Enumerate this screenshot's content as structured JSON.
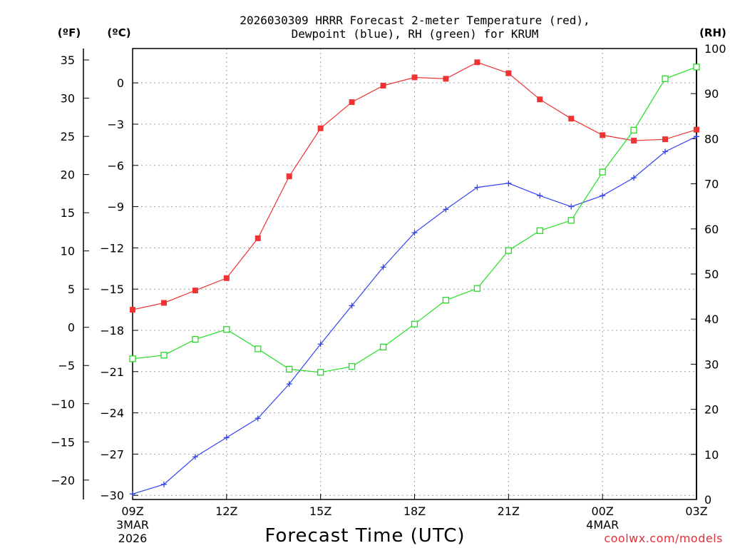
{
  "chart_data": {
    "type": "line",
    "title_line1": "2026030309 HRRR Forecast 2-meter Temperature (red),",
    "title_line2": "Dewpoint (blue), RH (green) for KRUM",
    "xlabel": "Forecast Time (UTC)",
    "credit": "coolwx.com/models",
    "unit_labels": {
      "fahrenheit": "(ºF)",
      "celsius": "(ºC)",
      "rh": "(RH)"
    },
    "x_ticks": [
      {
        "hour": 0,
        "label": "09Z",
        "sub1": "3MAR",
        "sub2": "2026"
      },
      {
        "hour": 3,
        "label": "12Z",
        "sub1": "",
        "sub2": ""
      },
      {
        "hour": 6,
        "label": "15Z",
        "sub1": "",
        "sub2": ""
      },
      {
        "hour": 9,
        "label": "18Z",
        "sub1": "",
        "sub2": ""
      },
      {
        "hour": 12,
        "label": "21Z",
        "sub1": "",
        "sub2": ""
      },
      {
        "hour": 15,
        "label": "00Z",
        "sub1": "4MAR",
        "sub2": ""
      },
      {
        "hour": 18,
        "label": "03Z",
        "sub1": "",
        "sub2": ""
      }
    ],
    "x_range": [
      0,
      18
    ],
    "celsius_range": [
      -30.3,
      2.5
    ],
    "celsius_ticks": [
      -30,
      -27,
      -24,
      -21,
      -18,
      -15,
      -12,
      -9,
      -6,
      -3,
      0
    ],
    "celsius_tick_labels": [
      "−30",
      "−27",
      "−24",
      "−21",
      "−18",
      "−15",
      "−12",
      "−9",
      "−6",
      "−3",
      "0"
    ],
    "fahrenheit_ticks": [
      -20,
      -15,
      -10,
      -5,
      0,
      5,
      10,
      15,
      20,
      25,
      30,
      35
    ],
    "fahrenheit_tick_labels": [
      "−20",
      "−15",
      "−10",
      "−5",
      "0",
      "5",
      "10",
      "15",
      "20",
      "25",
      "30",
      "35"
    ],
    "rh_range": [
      0,
      100
    ],
    "rh_ticks": [
      0,
      10,
      20,
      30,
      40,
      50,
      60,
      70,
      80,
      90,
      100
    ],
    "rh_tick_labels": [
      "0",
      "10",
      "20",
      "30",
      "40",
      "50",
      "60",
      "70",
      "80",
      "90",
      "100"
    ],
    "series": [
      {
        "name": "Temperature",
        "axis": "celsius",
        "color": "#ee3333",
        "marker": "filled-square",
        "x": [
          0,
          1,
          2,
          3,
          4,
          5,
          6,
          7,
          8,
          9,
          10,
          11,
          12,
          13,
          14,
          15,
          16,
          17,
          18
        ],
        "values": [
          -16.5,
          -16.0,
          -15.1,
          -14.2,
          -11.3,
          -6.8,
          -3.3,
          -1.4,
          -0.2,
          0.4,
          0.3,
          1.5,
          0.7,
          -1.2,
          -2.6,
          -3.8,
          -4.2,
          -4.1,
          -3.4
        ]
      },
      {
        "name": "Dewpoint",
        "axis": "celsius",
        "color": "#3344ee",
        "marker": "plus",
        "x": [
          0,
          1,
          2,
          3,
          4,
          5,
          6,
          7,
          8,
          9,
          10,
          11,
          12,
          13,
          14,
          15,
          16,
          17,
          18
        ],
        "values": [
          -29.9,
          -29.2,
          -27.2,
          -25.8,
          -24.4,
          -21.9,
          -19.0,
          -16.2,
          -13.4,
          -10.9,
          -9.2,
          -7.6,
          -7.3,
          -8.2,
          -9.0,
          -8.2,
          -6.9,
          -5.0,
          -3.9
        ]
      },
      {
        "name": "RH",
        "axis": "rh",
        "color": "#22dd22",
        "marker": "open-square",
        "x": [
          0,
          1,
          2,
          3,
          4,
          5,
          6,
          7,
          8,
          9,
          10,
          11,
          12,
          13,
          14,
          15,
          16,
          17,
          18
        ],
        "values": [
          31.2,
          32.0,
          35.5,
          37.7,
          33.4,
          28.9,
          28.2,
          29.5,
          33.8,
          38.9,
          44.2,
          46.8,
          55.2,
          59.6,
          61.9,
          72.6,
          81.9,
          93.3,
          95.9
        ]
      }
    ]
  }
}
